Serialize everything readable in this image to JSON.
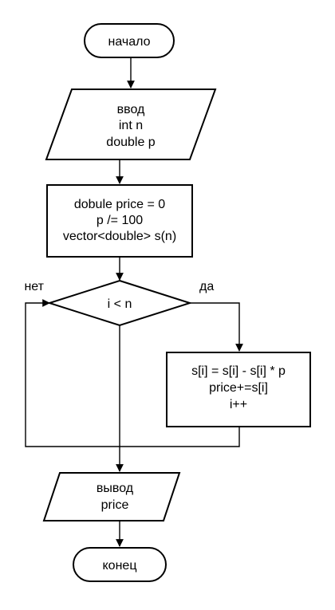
{
  "diagram": {
    "type": "flowchart",
    "start": "начало",
    "input": {
      "label": "ввод",
      "lines": [
        "int n",
        "double p"
      ]
    },
    "init": {
      "lines": [
        "dobule price = 0",
        "p /= 100",
        "vector<double> s(n)"
      ]
    },
    "decision": {
      "condition": "i < n",
      "no_label": "нет",
      "yes_label": "да"
    },
    "loop_body": {
      "lines": [
        "s[i] = s[i] - s[i] * p",
        "price+=s[i]",
        "i++"
      ]
    },
    "output": {
      "label": "вывод",
      "lines": [
        "price"
      ]
    },
    "end": "конец"
  }
}
